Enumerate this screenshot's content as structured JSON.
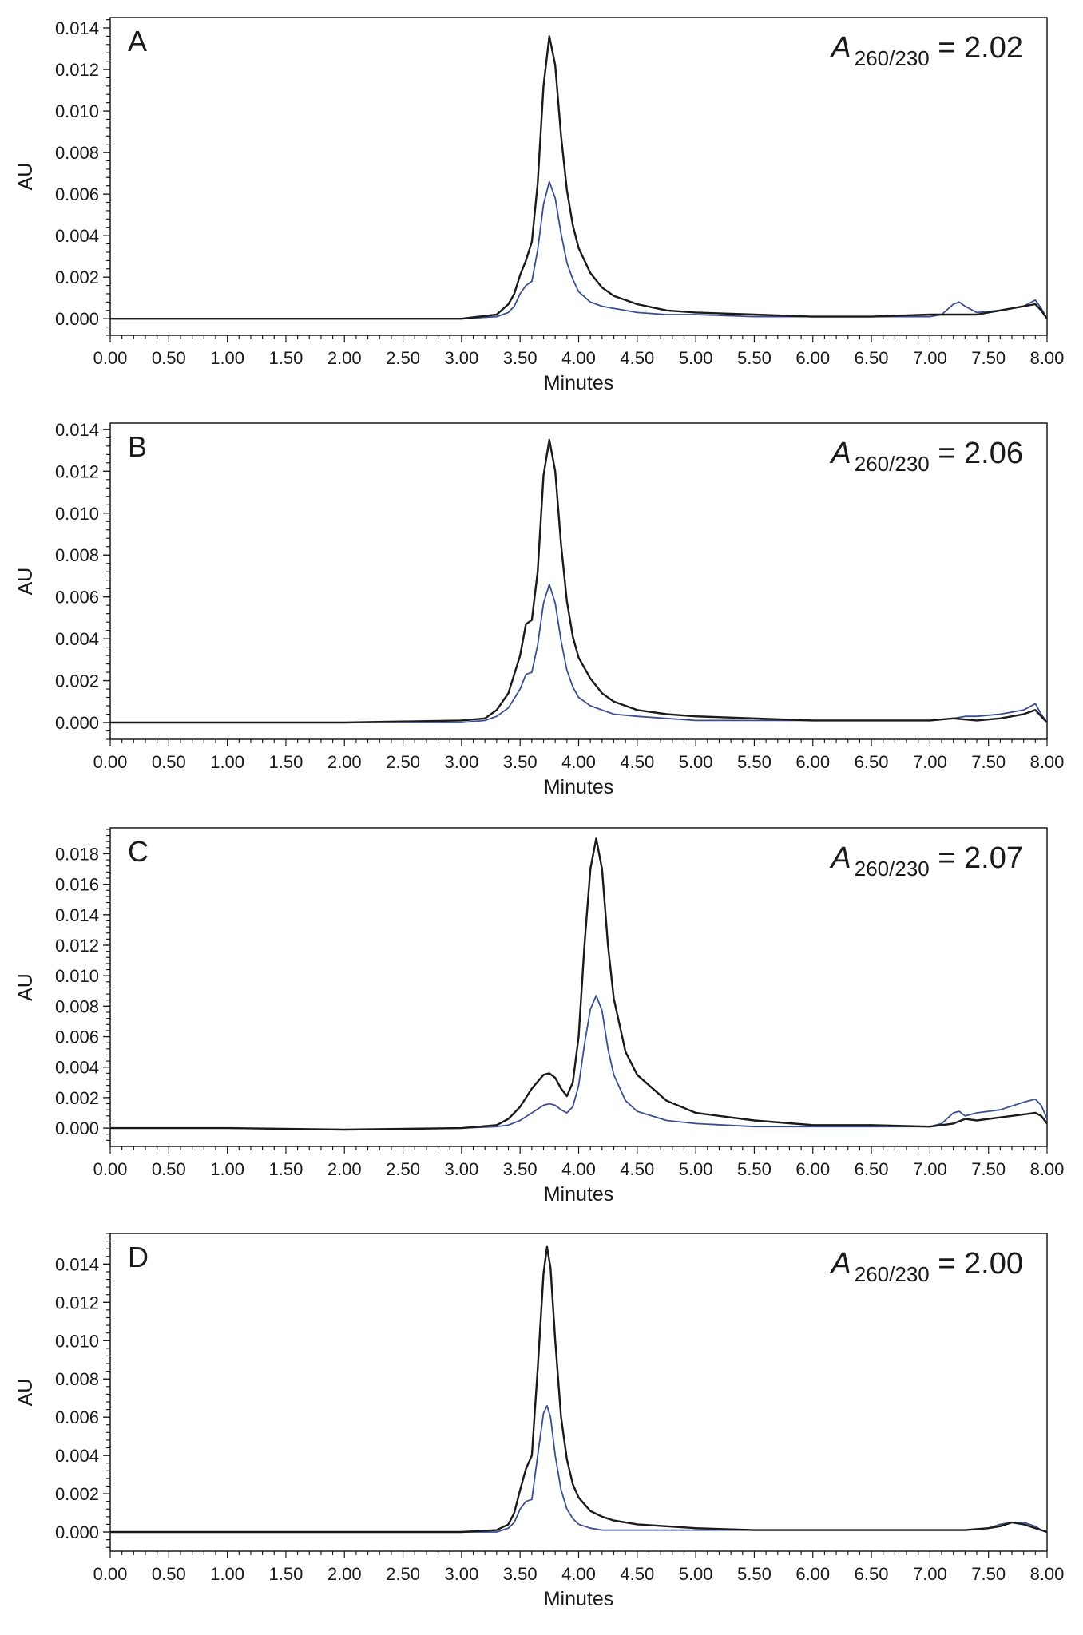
{
  "chart_data": [
    {
      "type": "line",
      "panel_label": "A",
      "annotation": {
        "symbol": "A",
        "subscript": "260/230",
        "text": " = 2.02"
      },
      "xlabel": "Minutes",
      "ylabel": "AU",
      "xlim": [
        0,
        8
      ],
      "ylim": [
        -0.0008,
        0.0145
      ],
      "x_ticks": [
        "0.00",
        "0.50",
        "1.00",
        "1.50",
        "2.00",
        "2.50",
        "3.00",
        "3.50",
        "4.00",
        "4.50",
        "5.00",
        "5.50",
        "6.00",
        "6.50",
        "7.00",
        "7.50",
        "8.00"
      ],
      "y_ticks": [
        "0.000",
        "0.002",
        "0.004",
        "0.006",
        "0.008",
        "0.010",
        "0.012",
        "0.014"
      ],
      "series": [
        {
          "color": "#1a1a1a",
          "x": [
            0.0,
            1.0,
            2.0,
            3.0,
            3.3,
            3.4,
            3.45,
            3.5,
            3.55,
            3.6,
            3.65,
            3.7,
            3.75,
            3.8,
            3.85,
            3.9,
            3.95,
            4.0,
            4.1,
            4.2,
            4.3,
            4.5,
            4.75,
            5.0,
            5.5,
            6.0,
            6.5,
            7.0,
            7.2,
            7.4,
            7.6,
            7.8,
            7.9,
            7.95,
            8.0
          ],
          "y": [
            0.0,
            0.0,
            0.0,
            0.0,
            0.0002,
            0.0007,
            0.0012,
            0.0021,
            0.0028,
            0.0037,
            0.0065,
            0.0112,
            0.0136,
            0.0122,
            0.0088,
            0.0062,
            0.0045,
            0.0034,
            0.0022,
            0.0015,
            0.0011,
            0.0007,
            0.0004,
            0.0003,
            0.0002,
            0.0001,
            0.0001,
            0.0002,
            0.0002,
            0.0002,
            0.0004,
            0.0006,
            0.0007,
            0.0004,
            0.0
          ]
        },
        {
          "color": "#3a4f8f",
          "x": [
            0.0,
            1.0,
            2.0,
            3.0,
            3.3,
            3.4,
            3.45,
            3.5,
            3.55,
            3.6,
            3.65,
            3.7,
            3.75,
            3.8,
            3.85,
            3.9,
            3.95,
            4.0,
            4.1,
            4.2,
            4.3,
            4.5,
            4.75,
            5.0,
            5.5,
            6.0,
            6.5,
            7.0,
            7.1,
            7.2,
            7.25,
            7.3,
            7.4,
            7.6,
            7.8,
            7.9,
            7.95,
            8.0
          ],
          "y": [
            0.0,
            0.0,
            0.0,
            0.0,
            0.0001,
            0.0003,
            0.0006,
            0.0012,
            0.0016,
            0.0018,
            0.0033,
            0.0055,
            0.0066,
            0.0058,
            0.0041,
            0.0027,
            0.0019,
            0.0013,
            0.0008,
            0.0006,
            0.0005,
            0.0003,
            0.0002,
            0.0002,
            0.0001,
            0.0001,
            0.0001,
            0.0001,
            0.0002,
            0.0007,
            0.0008,
            0.0006,
            0.0003,
            0.0004,
            0.0006,
            0.0009,
            0.0005,
            0.0
          ]
        }
      ]
    },
    {
      "type": "line",
      "panel_label": "B",
      "annotation": {
        "symbol": "A",
        "subscript": "260/230",
        "text": " = 2.06"
      },
      "xlabel": "Minutes",
      "ylabel": "AU",
      "xlim": [
        0,
        8
      ],
      "ylim": [
        -0.0008,
        0.0143
      ],
      "x_ticks": [
        "0.00",
        "0.50",
        "1.00",
        "1.50",
        "2.00",
        "2.50",
        "3.00",
        "3.50",
        "4.00",
        "4.50",
        "5.00",
        "5.50",
        "6.00",
        "6.50",
        "7.00",
        "7.50",
        "8.00"
      ],
      "y_ticks": [
        "0.000",
        "0.002",
        "0.004",
        "0.006",
        "0.008",
        "0.010",
        "0.012",
        "0.014"
      ],
      "series": [
        {
          "color": "#1a1a1a",
          "x": [
            0.0,
            1.0,
            2.0,
            3.0,
            3.2,
            3.3,
            3.4,
            3.5,
            3.55,
            3.6,
            3.65,
            3.7,
            3.75,
            3.8,
            3.85,
            3.9,
            3.95,
            4.0,
            4.1,
            4.2,
            4.3,
            4.5,
            4.75,
            5.0,
            5.5,
            6.0,
            6.5,
            7.0,
            7.2,
            7.4,
            7.6,
            7.8,
            7.9,
            7.95,
            8.0
          ],
          "y": [
            0.0,
            0.0,
            0.0,
            0.0001,
            0.0002,
            0.0006,
            0.0014,
            0.0032,
            0.0047,
            0.0049,
            0.0072,
            0.0118,
            0.0135,
            0.012,
            0.0085,
            0.0058,
            0.0041,
            0.0031,
            0.0021,
            0.0014,
            0.001,
            0.0006,
            0.0004,
            0.0003,
            0.0002,
            0.0001,
            0.0001,
            0.0001,
            0.0002,
            0.0001,
            0.0002,
            0.0004,
            0.0006,
            0.0003,
            0.0
          ]
        },
        {
          "color": "#3a4f8f",
          "x": [
            0.0,
            1.0,
            2.0,
            3.0,
            3.2,
            3.3,
            3.4,
            3.5,
            3.55,
            3.6,
            3.65,
            3.7,
            3.75,
            3.8,
            3.85,
            3.9,
            3.95,
            4.0,
            4.1,
            4.2,
            4.3,
            4.5,
            4.75,
            5.0,
            5.5,
            6.0,
            6.5,
            7.0,
            7.2,
            7.3,
            7.4,
            7.6,
            7.8,
            7.9,
            7.95,
            8.0
          ],
          "y": [
            0.0,
            0.0,
            0.0,
            0.0,
            0.0001,
            0.0003,
            0.0007,
            0.0016,
            0.0023,
            0.0024,
            0.0037,
            0.0057,
            0.0066,
            0.0057,
            0.0039,
            0.0025,
            0.0017,
            0.0012,
            0.0008,
            0.0006,
            0.0004,
            0.0003,
            0.0002,
            0.0001,
            0.0001,
            0.0001,
            0.0001,
            0.0001,
            0.0002,
            0.0003,
            0.0003,
            0.0004,
            0.0006,
            0.0009,
            0.0004,
            0.0
          ]
        }
      ]
    },
    {
      "type": "line",
      "panel_label": "C",
      "annotation": {
        "symbol": "A",
        "subscript": "260/230",
        "text": " = 2.07"
      },
      "xlabel": "Minutes",
      "ylabel": "AU",
      "xlim": [
        0,
        8
      ],
      "ylim": [
        -0.0012,
        0.0197
      ],
      "x_ticks": [
        "0.00",
        "0.50",
        "1.00",
        "1.50",
        "2.00",
        "2.50",
        "3.00",
        "3.50",
        "4.00",
        "4.50",
        "5.00",
        "5.50",
        "6.00",
        "6.50",
        "7.00",
        "7.50",
        "8.00"
      ],
      "y_ticks": [
        "0.000",
        "0.002",
        "0.004",
        "0.006",
        "0.008",
        "0.010",
        "0.012",
        "0.014",
        "0.016",
        "0.018"
      ],
      "series": [
        {
          "color": "#1a1a1a",
          "x": [
            0.0,
            1.0,
            2.0,
            3.0,
            3.3,
            3.4,
            3.5,
            3.6,
            3.7,
            3.75,
            3.8,
            3.85,
            3.9,
            3.95,
            4.0,
            4.05,
            4.1,
            4.15,
            4.2,
            4.25,
            4.3,
            4.4,
            4.5,
            4.75,
            5.0,
            5.5,
            6.0,
            6.5,
            7.0,
            7.2,
            7.3,
            7.4,
            7.6,
            7.8,
            7.9,
            7.95,
            8.0
          ],
          "y": [
            0.0,
            0.0,
            -0.0001,
            0.0,
            0.0002,
            0.0006,
            0.0014,
            0.0026,
            0.0035,
            0.0036,
            0.0033,
            0.0026,
            0.0021,
            0.003,
            0.006,
            0.012,
            0.017,
            0.019,
            0.017,
            0.012,
            0.0085,
            0.005,
            0.0035,
            0.0018,
            0.001,
            0.0005,
            0.0002,
            0.0002,
            0.0001,
            0.0003,
            0.0006,
            0.0005,
            0.0007,
            0.0009,
            0.001,
            0.0008,
            0.0003
          ]
        },
        {
          "color": "#3a4f8f",
          "x": [
            0.0,
            1.0,
            2.0,
            3.0,
            3.3,
            3.4,
            3.5,
            3.6,
            3.7,
            3.75,
            3.8,
            3.85,
            3.9,
            3.95,
            4.0,
            4.05,
            4.1,
            4.15,
            4.2,
            4.25,
            4.3,
            4.4,
            4.5,
            4.75,
            5.0,
            5.5,
            6.0,
            6.5,
            7.0,
            7.1,
            7.2,
            7.25,
            7.3,
            7.4,
            7.6,
            7.8,
            7.9,
            7.95,
            8.0
          ],
          "y": [
            0.0,
            0.0,
            -0.0001,
            0.0,
            0.0001,
            0.0002,
            0.0005,
            0.001,
            0.0015,
            0.0016,
            0.0015,
            0.0012,
            0.001,
            0.0014,
            0.0028,
            0.0055,
            0.0078,
            0.0087,
            0.0077,
            0.0052,
            0.0035,
            0.0018,
            0.0011,
            0.0005,
            0.0003,
            0.0001,
            0.0001,
            0.0001,
            0.0001,
            0.0003,
            0.001,
            0.0011,
            0.0008,
            0.001,
            0.0012,
            0.0017,
            0.0019,
            0.0015,
            0.0006
          ]
        }
      ]
    },
    {
      "type": "line",
      "panel_label": "D",
      "annotation": {
        "symbol": "A",
        "subscript": "260/230",
        "text": " = 2.00"
      },
      "xlabel": "Minutes",
      "ylabel": "AU",
      "xlim": [
        0,
        8
      ],
      "ylim": [
        -0.001,
        0.0156
      ],
      "x_ticks": [
        "0.00",
        "0.50",
        "1.00",
        "1.50",
        "2.00",
        "2.50",
        "3.00",
        "3.50",
        "4.00",
        "4.50",
        "5.00",
        "5.50",
        "6.00",
        "6.50",
        "7.00",
        "7.50",
        "8.00"
      ],
      "y_ticks": [
        "0.000",
        "0.002",
        "0.004",
        "0.006",
        "0.008",
        "0.010",
        "0.012",
        "0.014"
      ],
      "series": [
        {
          "color": "#1a1a1a",
          "x": [
            0.0,
            1.0,
            2.0,
            3.0,
            3.3,
            3.4,
            3.45,
            3.5,
            3.55,
            3.6,
            3.65,
            3.7,
            3.73,
            3.76,
            3.8,
            3.85,
            3.9,
            3.95,
            4.0,
            4.1,
            4.2,
            4.3,
            4.5,
            4.75,
            5.0,
            5.5,
            6.0,
            6.5,
            7.0,
            7.3,
            7.5,
            7.6,
            7.7,
            7.8,
            7.9,
            7.95,
            8.0
          ],
          "y": [
            0.0,
            0.0,
            0.0,
            0.0,
            0.0001,
            0.0004,
            0.001,
            0.0022,
            0.0033,
            0.004,
            0.0085,
            0.0135,
            0.0149,
            0.0138,
            0.01,
            0.006,
            0.0038,
            0.0025,
            0.0018,
            0.0011,
            0.0008,
            0.0006,
            0.0004,
            0.0003,
            0.0002,
            0.0001,
            0.0001,
            0.0001,
            0.0001,
            0.0001,
            0.0002,
            0.0003,
            0.0005,
            0.0004,
            0.0002,
            0.0001,
            0.0
          ]
        },
        {
          "color": "#3a4f8f",
          "x": [
            0.0,
            1.0,
            2.0,
            3.0,
            3.3,
            3.4,
            3.45,
            3.5,
            3.55,
            3.6,
            3.65,
            3.7,
            3.73,
            3.76,
            3.8,
            3.85,
            3.9,
            3.95,
            4.0,
            4.1,
            4.2,
            4.3,
            4.5,
            4.75,
            5.0,
            5.5,
            6.0,
            6.5,
            7.0,
            7.3,
            7.5,
            7.6,
            7.7,
            7.8,
            7.9,
            7.95,
            8.0
          ],
          "y": [
            0.0,
            0.0,
            0.0,
            0.0,
            0.0,
            0.0002,
            0.0005,
            0.0012,
            0.0016,
            0.0017,
            0.004,
            0.0062,
            0.0066,
            0.006,
            0.004,
            0.0022,
            0.0012,
            0.0007,
            0.0004,
            0.0002,
            0.0001,
            0.0001,
            0.0001,
            0.0001,
            0.0001,
            0.0001,
            0.0001,
            0.0001,
            0.0001,
            0.0001,
            0.0002,
            0.0004,
            0.0005,
            0.0005,
            0.0003,
            0.0001,
            0.0
          ]
        }
      ]
    }
  ]
}
